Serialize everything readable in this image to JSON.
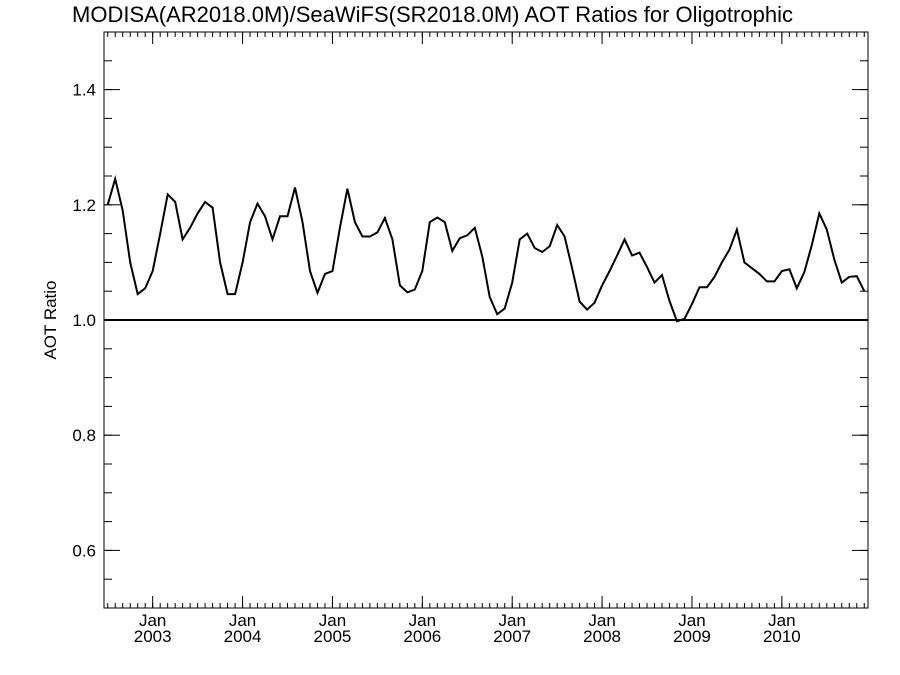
{
  "chart_data": {
    "type": "line",
    "title": "MODISA(AR2018.0M)/SeaWiFS(SR2018.0M)  AOT Ratios for Oligotrophic",
    "xlabel": "",
    "ylabel": "AOT Ratio",
    "xlim": [
      "2002-07",
      "2010-12"
    ],
    "ylim": [
      0.5,
      1.5
    ],
    "yticks": [
      {
        "value": 0.6,
        "label": "0.6"
      },
      {
        "value": 0.8,
        "label": "0.8"
      },
      {
        "value": 1.0,
        "label": "1.0"
      },
      {
        "value": 1.2,
        "label": "1.2"
      },
      {
        "value": 1.4,
        "label": "1.4"
      }
    ],
    "xticks": [
      {
        "month": "2003-01",
        "label_top": "Jan",
        "label_bottom": "2003"
      },
      {
        "month": "2004-01",
        "label_top": "Jan",
        "label_bottom": "2004"
      },
      {
        "month": "2005-01",
        "label_top": "Jan",
        "label_bottom": "2005"
      },
      {
        "month": "2006-01",
        "label_top": "Jan",
        "label_bottom": "2006"
      },
      {
        "month": "2007-01",
        "label_top": "Jan",
        "label_bottom": "2007"
      },
      {
        "month": "2008-01",
        "label_top": "Jan",
        "label_bottom": "2008"
      },
      {
        "month": "2009-01",
        "label_top": "Jan",
        "label_bottom": "2009"
      },
      {
        "month": "2010-01",
        "label_top": "Jan",
        "label_bottom": "2010"
      }
    ],
    "reference_line": {
      "y": 1.0
    },
    "grid": false,
    "series": [
      {
        "x": [
          "2002-07",
          "2002-08",
          "2002-09",
          "2002-10",
          "2002-11",
          "2002-12",
          "2003-01",
          "2003-02",
          "2003-03",
          "2003-04",
          "2003-05",
          "2003-06",
          "2003-07",
          "2003-08",
          "2003-09",
          "2003-10",
          "2003-11",
          "2003-12",
          "2004-01",
          "2004-02",
          "2004-03",
          "2004-04",
          "2004-05",
          "2004-06",
          "2004-07",
          "2004-08",
          "2004-09",
          "2004-10",
          "2004-11",
          "2004-12",
          "2005-01",
          "2005-02",
          "2005-03",
          "2005-04",
          "2005-05",
          "2005-06",
          "2005-07",
          "2005-08",
          "2005-09",
          "2005-10",
          "2005-11",
          "2005-12",
          "2006-01",
          "2006-02",
          "2006-03",
          "2006-04",
          "2006-05",
          "2006-06",
          "2006-07",
          "2006-08",
          "2006-09",
          "2006-10",
          "2006-11",
          "2006-12",
          "2007-01",
          "2007-02",
          "2007-03",
          "2007-04",
          "2007-05",
          "2007-06",
          "2007-07",
          "2007-08",
          "2007-09",
          "2007-10",
          "2007-11",
          "2007-12",
          "2008-01",
          "2008-02",
          "2008-03",
          "2008-04",
          "2008-05",
          "2008-06",
          "2008-07",
          "2008-08",
          "2008-09",
          "2008-10",
          "2008-11",
          "2008-12",
          "2009-01",
          "2009-02",
          "2009-03",
          "2009-04",
          "2009-05",
          "2009-06",
          "2009-07",
          "2009-08",
          "2009-09",
          "2009-10",
          "2009-11",
          "2009-12",
          "2010-01",
          "2010-02",
          "2010-03",
          "2010-04",
          "2010-05",
          "2010-06",
          "2010-07",
          "2010-08",
          "2010-09",
          "2010-10",
          "2010-11",
          "2010-12"
        ],
        "values": [
          1.2,
          1.245,
          1.19,
          1.1,
          1.045,
          1.055,
          1.085,
          1.15,
          1.218,
          1.205,
          1.14,
          1.16,
          1.185,
          1.205,
          1.195,
          1.1,
          1.045,
          1.045,
          1.1,
          1.17,
          1.202,
          1.18,
          1.14,
          1.18,
          1.18,
          1.23,
          1.17,
          1.085,
          1.047,
          1.08,
          1.085,
          1.16,
          1.228,
          1.17,
          1.145,
          1.145,
          1.152,
          1.177,
          1.14,
          1.06,
          1.048,
          1.053,
          1.085,
          1.17,
          1.178,
          1.17,
          1.12,
          1.142,
          1.147,
          1.16,
          1.11,
          1.04,
          1.01,
          1.02,
          1.065,
          1.14,
          1.15,
          1.125,
          1.118,
          1.128,
          1.165,
          1.145,
          1.09,
          1.032,
          1.018,
          1.03,
          1.06,
          1.085,
          1.112,
          1.14,
          1.112,
          1.117,
          1.092,
          1.065,
          1.078,
          1.033,
          0.998,
          1.002,
          1.028,
          1.057,
          1.057,
          1.075,
          1.1,
          1.122,
          1.157,
          1.1,
          1.09,
          1.08,
          1.067,
          1.067,
          1.085,
          1.088,
          1.055,
          1.083,
          1.13,
          1.185,
          1.157,
          1.105,
          1.065,
          1.075,
          1.076,
          1.05
        ]
      }
    ]
  }
}
